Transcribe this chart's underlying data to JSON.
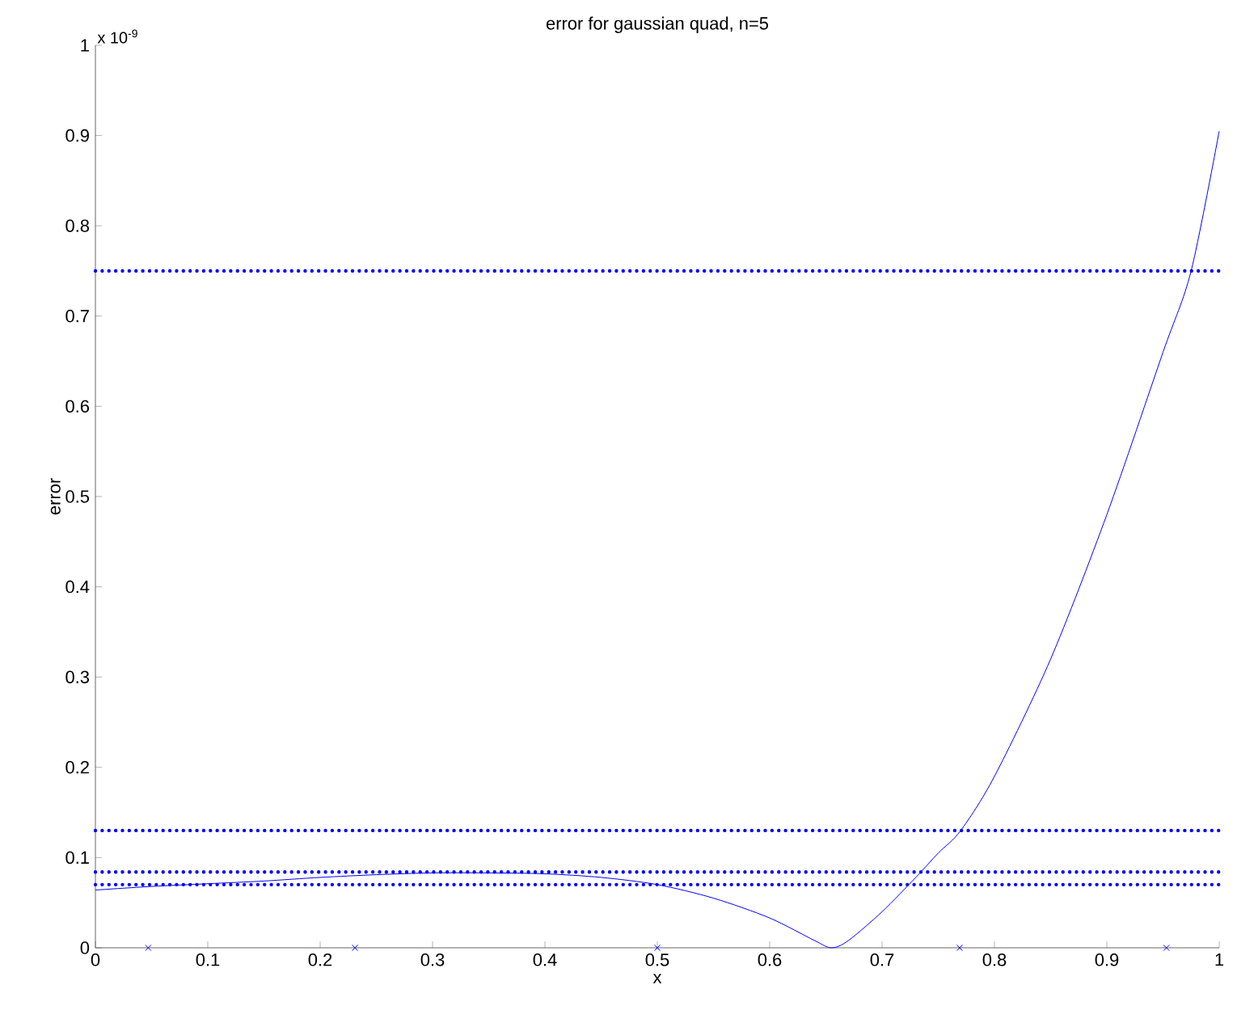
{
  "chart_data": {
    "type": "line",
    "title": "error for gaussian quad, n=5",
    "xlabel": "x",
    "ylabel": "error",
    "annotations": [
      "x 10$^{-9}$"
    ],
    "xlim": [
      0,
      1
    ],
    "ylim": [
      0,
      1
    ],
    "xticks": [
      0,
      0.1,
      0.2,
      0.3,
      0.4,
      0.5,
      0.6,
      0.7,
      0.8,
      0.9,
      1
    ],
    "yticks": [
      0,
      0.1,
      0.2,
      0.3,
      0.4,
      0.5,
      0.6,
      0.7,
      0.8,
      0.9,
      1
    ],
    "series": [
      {
        "color": "#0000ff",
        "marker": "none",
        "line_style": "solid",
        "x": [
          0,
          0.05,
          0.1,
          0.15,
          0.2,
          0.25,
          0.3,
          0.35,
          0.4,
          0.45,
          0.5,
          0.55,
          0.6,
          0.64,
          0.655,
          0.67,
          0.7,
          0.73,
          0.75,
          0.77,
          0.8,
          0.85,
          0.9,
          0.95,
          0.975,
          1
        ],
        "values": [
          0.064,
          0.068,
          0.071,
          0.074,
          0.078,
          0.081,
          0.083,
          0.083,
          0.082,
          0.078,
          0.07,
          0.055,
          0.033,
          0.008,
          0.0,
          0.008,
          0.04,
          0.078,
          0.105,
          0.13,
          0.19,
          0.32,
          0.48,
          0.66,
          0.75,
          0.905
        ]
      },
      {
        "type": "scatter",
        "color": "#0000ff",
        "marker": "cross",
        "x": [
          0.047,
          0.231,
          0.5,
          0.769,
          0.953
        ],
        "values": [
          0,
          0,
          0,
          0,
          0
        ]
      }
    ],
    "ref_lines": [
      {
        "axis": "y",
        "value": 0.75,
        "color": "#0000ff",
        "line_style": "dotted"
      },
      {
        "axis": "y",
        "value": 0.13,
        "color": "#0000ff",
        "line_style": "dotted"
      },
      {
        "axis": "y",
        "value": 0.084,
        "color": "#0000ff",
        "line_style": "dotted"
      },
      {
        "axis": "y",
        "value": 0.07,
        "color": "#0000ff",
        "line_style": "dotted"
      }
    ]
  }
}
